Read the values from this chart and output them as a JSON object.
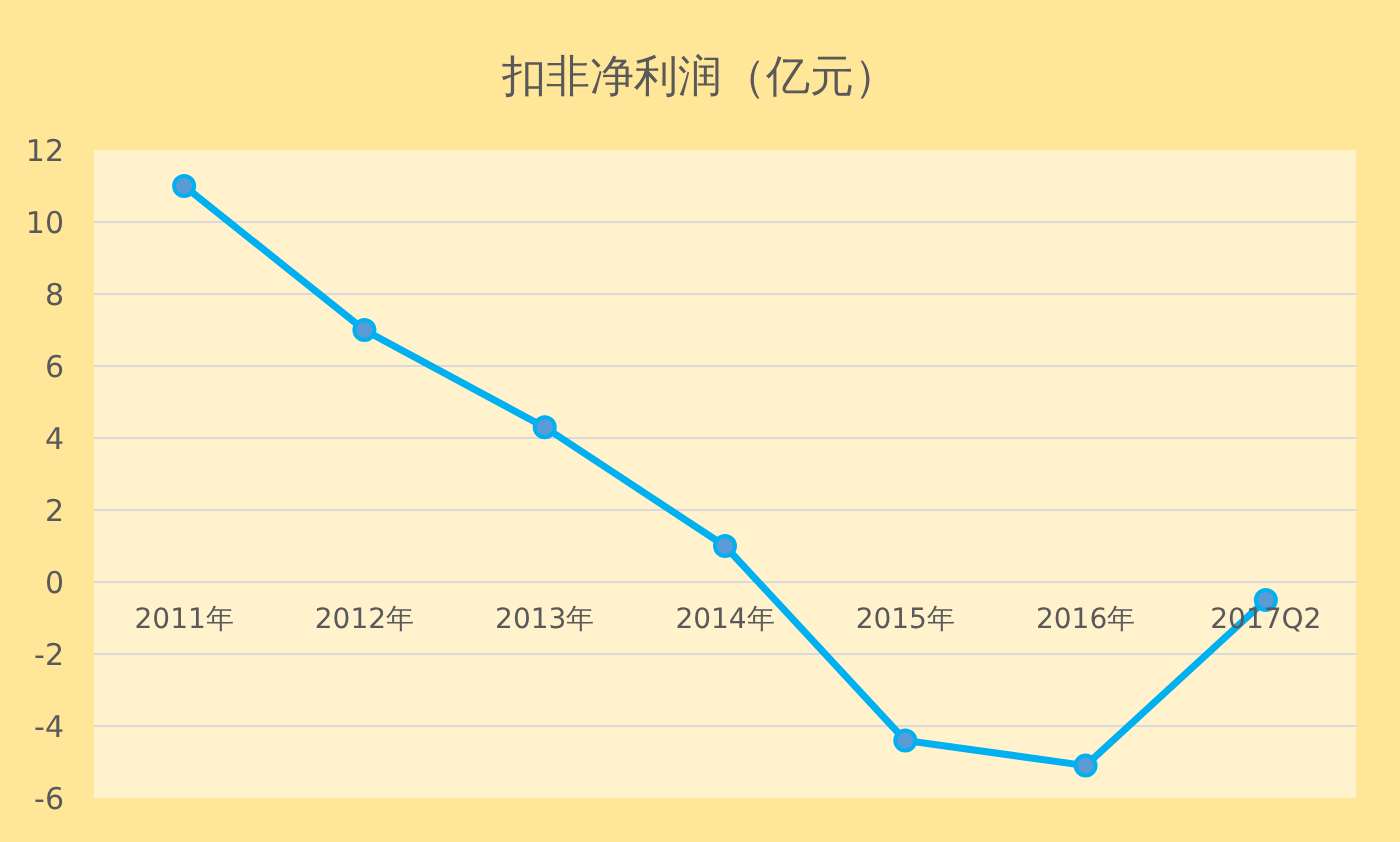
{
  "chart_data": {
    "type": "line",
    "title": "扣非净利润（亿元）",
    "categories": [
      "2011年",
      "2012年",
      "2013年",
      "2014年",
      "2015年",
      "2016年",
      "2017Q2"
    ],
    "series": [
      {
        "color": "#00b0f0",
        "values": [
          11.0,
          7.0,
          4.3,
          1.0,
          -4.4,
          -5.1,
          -0.5
        ]
      }
    ],
    "ylim": [
      -6,
      12
    ],
    "yticks": [
      -6,
      -4,
      -2,
      0,
      2,
      4,
      6,
      8,
      10,
      12
    ],
    "grid": "y",
    "marker": "circle",
    "line_style": "solid"
  }
}
